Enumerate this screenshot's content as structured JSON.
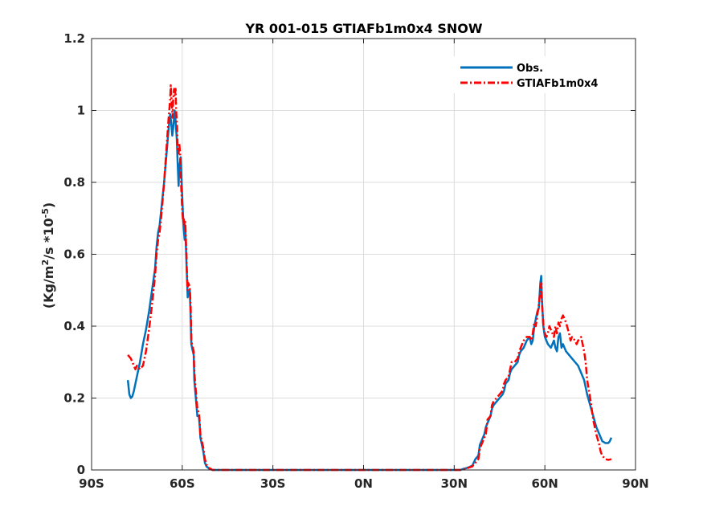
{
  "chart_data": {
    "type": "line",
    "title": "YR 001-015 GTIAFb1m0x4 SNOW",
    "xlabel": "",
    "ylabel_parts": [
      "(Kg/m",
      "2",
      "/s *10",
      "-5",
      ")"
    ],
    "xlim": [
      -90,
      90
    ],
    "ylim": [
      0,
      1.2
    ],
    "x_ticks": [
      {
        "value": -90,
        "label": "90S"
      },
      {
        "value": -60,
        "label": "60S"
      },
      {
        "value": -30,
        "label": "30S"
      },
      {
        "value": 0,
        "label": "0N"
      },
      {
        "value": 30,
        "label": "30N"
      },
      {
        "value": 60,
        "label": "60N"
      },
      {
        "value": 90,
        "label": "90N"
      }
    ],
    "y_ticks": [
      {
        "value": 0,
        "label": "0"
      },
      {
        "value": 0.2,
        "label": "0.2"
      },
      {
        "value": 0.4,
        "label": "0.4"
      },
      {
        "value": 0.6,
        "label": "0.6"
      },
      {
        "value": 0.8,
        "label": "0.8"
      },
      {
        "value": 1,
        "label": "1"
      },
      {
        "value": 1.2,
        "label": "1.2"
      }
    ],
    "grid": true,
    "legend_position": "top-right",
    "series": [
      {
        "name": "Obs.",
        "color": "#0072BD",
        "style": "solid",
        "points": [
          [
            -78,
            0.25
          ],
          [
            -77.5,
            0.21
          ],
          [
            -77,
            0.2
          ],
          [
            -76.5,
            0.205
          ],
          [
            -76,
            0.22
          ],
          [
            -75,
            0.26
          ],
          [
            -74,
            0.3
          ],
          [
            -73,
            0.35
          ],
          [
            -72,
            0.39
          ],
          [
            -71,
            0.44
          ],
          [
            -70,
            0.5
          ],
          [
            -69,
            0.56
          ],
          [
            -68.5,
            0.62
          ],
          [
            -68,
            0.66
          ],
          [
            -67.5,
            0.68
          ],
          [
            -67,
            0.72
          ],
          [
            -66,
            0.8
          ],
          [
            -65.5,
            0.85
          ],
          [
            -65,
            0.9
          ],
          [
            -64.5,
            0.95
          ],
          [
            -64,
            0.99
          ],
          [
            -63.7,
            0.97
          ],
          [
            -63.3,
            0.93
          ],
          [
            -63,
            0.95
          ],
          [
            -62.5,
            1.0
          ],
          [
            -62.2,
            0.97
          ],
          [
            -61.8,
            0.92
          ],
          [
            -61.5,
            0.85
          ],
          [
            -61.2,
            0.79
          ],
          [
            -61,
            0.84
          ],
          [
            -60.5,
            0.87
          ],
          [
            -60,
            0.76
          ],
          [
            -59.7,
            0.7
          ],
          [
            -59.5,
            0.67
          ],
          [
            -59.2,
            0.64
          ],
          [
            -59,
            0.68
          ],
          [
            -58.7,
            0.6
          ],
          [
            -58.5,
            0.55
          ],
          [
            -58.2,
            0.48
          ],
          [
            -58,
            0.49
          ],
          [
            -57.5,
            0.5
          ],
          [
            -57.2,
            0.42
          ],
          [
            -57,
            0.35
          ],
          [
            -56.5,
            0.33
          ],
          [
            -56.2,
            0.32
          ],
          [
            -56,
            0.25
          ],
          [
            -55.5,
            0.2
          ],
          [
            -55,
            0.15
          ],
          [
            -54.5,
            0.15
          ],
          [
            -54.2,
            0.12
          ],
          [
            -54,
            0.09
          ],
          [
            -53.5,
            0.07
          ],
          [
            -53,
            0.05
          ],
          [
            -52.5,
            0.02
          ],
          [
            -52,
            0.01
          ],
          [
            -51,
            0.003
          ],
          [
            -50,
            0.0
          ],
          [
            -40,
            0.0
          ],
          [
            -20,
            0.0
          ],
          [
            0,
            0.0
          ],
          [
            20,
            0.0
          ],
          [
            30,
            0.0
          ],
          [
            32,
            0.0
          ],
          [
            33,
            0.003
          ],
          [
            34,
            0.005
          ],
          [
            35,
            0.008
          ],
          [
            36,
            0.012
          ],
          [
            37,
            0.03
          ],
          [
            38,
            0.04
          ],
          [
            38.5,
            0.07
          ],
          [
            39,
            0.08
          ],
          [
            40,
            0.1
          ],
          [
            40.5,
            0.12
          ],
          [
            41,
            0.13
          ],
          [
            42,
            0.15
          ],
          [
            42.5,
            0.17
          ],
          [
            43,
            0.18
          ],
          [
            44,
            0.19
          ],
          [
            45,
            0.2
          ],
          [
            46,
            0.21
          ],
          [
            46.5,
            0.22
          ],
          [
            47,
            0.24
          ],
          [
            48,
            0.25
          ],
          [
            48.5,
            0.27
          ],
          [
            49,
            0.28
          ],
          [
            50,
            0.29
          ],
          [
            51,
            0.3
          ],
          [
            51.5,
            0.32
          ],
          [
            52,
            0.33
          ],
          [
            53,
            0.34
          ],
          [
            54,
            0.36
          ],
          [
            55,
            0.37
          ],
          [
            55.5,
            0.35
          ],
          [
            56,
            0.36
          ],
          [
            56.5,
            0.4
          ],
          [
            57,
            0.42
          ],
          [
            57.5,
            0.44
          ],
          [
            58,
            0.45
          ],
          [
            58.5,
            0.52
          ],
          [
            58.8,
            0.54
          ],
          [
            59,
            0.48
          ],
          [
            59.5,
            0.4
          ],
          [
            60,
            0.37
          ],
          [
            61,
            0.35
          ],
          [
            62,
            0.34
          ],
          [
            63,
            0.36
          ],
          [
            63.5,
            0.34
          ],
          [
            64,
            0.33
          ],
          [
            64.5,
            0.37
          ],
          [
            65,
            0.38
          ],
          [
            65.5,
            0.34
          ],
          [
            66,
            0.35
          ],
          [
            67,
            0.33
          ],
          [
            68,
            0.32
          ],
          [
            69,
            0.31
          ],
          [
            70,
            0.3
          ],
          [
            71,
            0.29
          ],
          [
            71.5,
            0.28
          ],
          [
            72,
            0.27
          ],
          [
            73,
            0.25
          ],
          [
            74,
            0.21
          ],
          [
            75,
            0.18
          ],
          [
            76,
            0.15
          ],
          [
            77,
            0.12
          ],
          [
            78,
            0.1
          ],
          [
            78.5,
            0.09
          ],
          [
            79,
            0.08
          ],
          [
            80,
            0.075
          ],
          [
            81,
            0.075
          ],
          [
            81.5,
            0.08
          ],
          [
            82,
            0.09
          ]
        ]
      },
      {
        "name": "GTIAFb1m0x4",
        "color": "#FF0000",
        "style": "dashdot",
        "points": [
          [
            -78,
            0.32
          ],
          [
            -77,
            0.31
          ],
          [
            -76,
            0.29
          ],
          [
            -75.5,
            0.28
          ],
          [
            -75,
            0.29
          ],
          [
            -74,
            0.28
          ],
          [
            -73,
            0.29
          ],
          [
            -72,
            0.33
          ],
          [
            -71,
            0.39
          ],
          [
            -70,
            0.46
          ],
          [
            -69,
            0.54
          ],
          [
            -68.5,
            0.6
          ],
          [
            -68,
            0.64
          ],
          [
            -67.5,
            0.66
          ],
          [
            -67,
            0.7
          ],
          [
            -66.5,
            0.75
          ],
          [
            -66,
            0.8
          ],
          [
            -65.5,
            0.86
          ],
          [
            -65,
            0.92
          ],
          [
            -64.5,
            0.98
          ],
          [
            -64,
            1.03
          ],
          [
            -63.8,
            1.07
          ],
          [
            -63.5,
            1.02
          ],
          [
            -63.2,
            0.98
          ],
          [
            -63,
            1.03
          ],
          [
            -62.7,
            1.06
          ],
          [
            -62.5,
            1.04
          ],
          [
            -62.2,
            1.06
          ],
          [
            -62,
            1.0
          ],
          [
            -61.7,
            0.95
          ],
          [
            -61.5,
            0.89
          ],
          [
            -61.2,
            0.88
          ],
          [
            -61,
            0.91
          ],
          [
            -60.7,
            0.88
          ],
          [
            -60.5,
            0.82
          ],
          [
            -60,
            0.72
          ],
          [
            -59.7,
            0.69
          ],
          [
            -59.5,
            0.7
          ],
          [
            -59.2,
            0.68
          ],
          [
            -59,
            0.69
          ],
          [
            -58.7,
            0.62
          ],
          [
            -58.5,
            0.56
          ],
          [
            -58.2,
            0.5
          ],
          [
            -58,
            0.52
          ],
          [
            -57.5,
            0.51
          ],
          [
            -57.2,
            0.45
          ],
          [
            -57,
            0.36
          ],
          [
            -56.5,
            0.34
          ],
          [
            -56.2,
            0.33
          ],
          [
            -56,
            0.27
          ],
          [
            -55.5,
            0.22
          ],
          [
            -55,
            0.17
          ],
          [
            -54.5,
            0.16
          ],
          [
            -54.2,
            0.13
          ],
          [
            -54,
            0.1
          ],
          [
            -53.5,
            0.08
          ],
          [
            -53,
            0.06
          ],
          [
            -52.5,
            0.03
          ],
          [
            -52,
            0.015
          ],
          [
            -51,
            0.005
          ],
          [
            -50,
            0.0
          ],
          [
            -40,
            0.0
          ],
          [
            -20,
            0.0
          ],
          [
            0,
            0.0
          ],
          [
            20,
            0.0
          ],
          [
            30,
            0.0
          ],
          [
            32,
            0.0
          ],
          [
            33,
            0.002
          ],
          [
            34,
            0.004
          ],
          [
            35,
            0.007
          ],
          [
            36,
            0.01
          ],
          [
            37,
            0.02
          ],
          [
            38,
            0.03
          ],
          [
            38.5,
            0.06
          ],
          [
            39,
            0.07
          ],
          [
            40,
            0.09
          ],
          [
            40.5,
            0.1
          ],
          [
            41,
            0.14
          ],
          [
            42,
            0.15
          ],
          [
            42.5,
            0.18
          ],
          [
            43,
            0.19
          ],
          [
            44,
            0.2
          ],
          [
            45,
            0.21
          ],
          [
            46,
            0.22
          ],
          [
            46.5,
            0.24
          ],
          [
            47,
            0.25
          ],
          [
            48,
            0.26
          ],
          [
            48.5,
            0.28
          ],
          [
            49,
            0.3
          ],
          [
            50,
            0.3
          ],
          [
            51,
            0.31
          ],
          [
            51.5,
            0.33
          ],
          [
            52,
            0.34
          ],
          [
            53,
            0.36
          ],
          [
            54,
            0.37
          ],
          [
            55,
            0.37
          ],
          [
            55.5,
            0.36
          ],
          [
            56,
            0.38
          ],
          [
            56.5,
            0.41
          ],
          [
            57,
            0.4
          ],
          [
            57.5,
            0.43
          ],
          [
            58,
            0.46
          ],
          [
            58.5,
            0.5
          ],
          [
            58.8,
            0.52
          ],
          [
            59,
            0.47
          ],
          [
            59.5,
            0.4
          ],
          [
            60,
            0.38
          ],
          [
            60.5,
            0.37
          ],
          [
            61,
            0.38
          ],
          [
            61.5,
            0.4
          ],
          [
            62,
            0.39
          ],
          [
            62.5,
            0.38
          ],
          [
            63,
            0.37
          ],
          [
            63.5,
            0.4
          ],
          [
            64,
            0.38
          ],
          [
            64.5,
            0.41
          ],
          [
            65,
            0.4
          ],
          [
            65.5,
            0.42
          ],
          [
            66,
            0.43
          ],
          [
            66.5,
            0.42
          ],
          [
            67,
            0.41
          ],
          [
            68,
            0.38
          ],
          [
            68.5,
            0.36
          ],
          [
            69,
            0.37
          ],
          [
            70,
            0.36
          ],
          [
            70.5,
            0.35
          ],
          [
            71,
            0.36
          ],
          [
            72,
            0.37
          ],
          [
            72.5,
            0.35
          ],
          [
            73,
            0.33
          ],
          [
            73.5,
            0.3
          ],
          [
            74,
            0.25
          ],
          [
            75,
            0.2
          ],
          [
            76,
            0.14
          ],
          [
            77,
            0.1
          ],
          [
            78,
            0.07
          ],
          [
            78.5,
            0.05
          ],
          [
            79,
            0.04
          ],
          [
            80,
            0.03
          ],
          [
            81,
            0.028
          ],
          [
            82,
            0.03
          ]
        ]
      }
    ]
  }
}
